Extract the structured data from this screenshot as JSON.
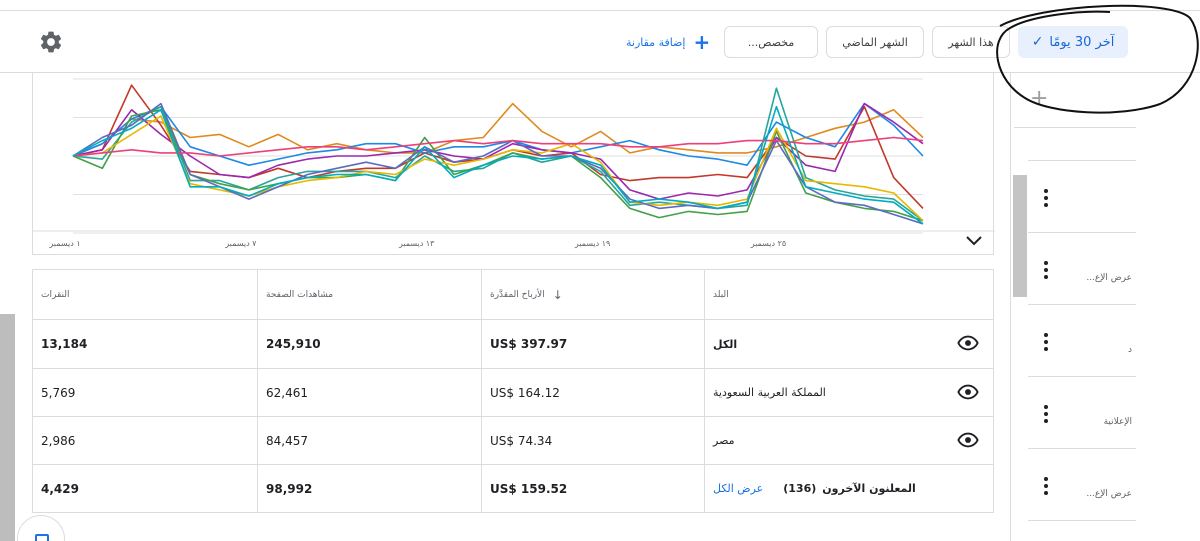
{
  "toolbar": {
    "add_compare": "إضافة مقارنة",
    "custom": "مخصص...",
    "last_month": "الشهر الماضي",
    "this_month": "هذا الشهر",
    "last_30_days": "آخر 30 يومًا",
    "icons": {
      "settings": "gear-icon",
      "add": "plus-icon",
      "check": "check-icon"
    }
  },
  "chart": {
    "x_ticks": [
      "١ ديسمبر",
      "٧ ديسمبر",
      "١٣ ديسمبر",
      "١٩ ديسمبر",
      "٢٥ ديسمبر"
    ]
  },
  "chart_data": {
    "type": "line",
    "x_ticks": [
      "١ ديسمبر",
      "٧ ديسمبر",
      "١٣ ديسمبر",
      "١٩ ديسمبر",
      "٢٥ ديسمبر"
    ],
    "x_count": 30,
    "ylim": [
      0,
      100
    ],
    "grid": true,
    "legend": "none",
    "series": [
      {
        "color": "#e08a1e",
        "values": [
          50,
          58,
          74,
          72,
          62,
          64,
          56,
          64,
          54,
          58,
          54,
          52,
          52,
          60,
          62,
          84,
          66,
          56,
          66,
          52,
          56,
          54,
          52,
          52,
          56,
          62,
          68,
          72,
          80,
          62
        ]
      },
      {
        "color": "#c0392b",
        "values": [
          50,
          54,
          96,
          70,
          40,
          38,
          36,
          42,
          36,
          40,
          42,
          42,
          52,
          46,
          48,
          54,
          50,
          52,
          38,
          34,
          36,
          36,
          38,
          36,
          62,
          50,
          48,
          82,
          36,
          16
        ]
      },
      {
        "color": "#1e88e5",
        "values": [
          50,
          58,
          74,
          82,
          56,
          50,
          44,
          48,
          52,
          54,
          58,
          58,
          52,
          56,
          56,
          60,
          54,
          52,
          56,
          60,
          54,
          50,
          48,
          44,
          72,
          62,
          56,
          84,
          70,
          50
        ]
      },
      {
        "color": "#9c27b0",
        "values": [
          50,
          54,
          80,
          64,
          50,
          38,
          36,
          44,
          48,
          50,
          50,
          52,
          54,
          50,
          48,
          58,
          54,
          52,
          48,
          28,
          22,
          26,
          24,
          28,
          62,
          44,
          40,
          84,
          72,
          58
        ]
      },
      {
        "color": "#26a69a",
        "values": [
          50,
          48,
          72,
          82,
          34,
          34,
          28,
          36,
          40,
          40,
          40,
          36,
          50,
          40,
          42,
          52,
          46,
          50,
          40,
          18,
          20,
          18,
          16,
          18,
          94,
          36,
          28,
          24,
          22,
          8
        ]
      },
      {
        "color": "#43a047",
        "values": [
          50,
          42,
          76,
          80,
          38,
          32,
          28,
          32,
          36,
          36,
          38,
          34,
          62,
          38,
          44,
          52,
          48,
          50,
          36,
          16,
          10,
          14,
          12,
          14,
          66,
          26,
          20,
          16,
          14,
          8
        ]
      },
      {
        "color": "#e6b800",
        "values": [
          50,
          52,
          64,
          76,
          32,
          28,
          24,
          30,
          34,
          36,
          40,
          38,
          48,
          44,
          48,
          54,
          52,
          58,
          46,
          20,
          18,
          20,
          18,
          22,
          68,
          34,
          32,
          30,
          26,
          8
        ]
      },
      {
        "color": "#5c6bc0",
        "values": [
          50,
          62,
          70,
          84,
          38,
          30,
          22,
          30,
          38,
          42,
          46,
          42,
          56,
          46,
          50,
          60,
          50,
          50,
          42,
          22,
          16,
          18,
          16,
          20,
          60,
          30,
          20,
          18,
          12,
          6
        ]
      },
      {
        "color": "#ec407a",
        "values": [
          50,
          52,
          54,
          52,
          52,
          50,
          52,
          54,
          56,
          56,
          54,
          56,
          58,
          60,
          58,
          60,
          58,
          58,
          58,
          56,
          56,
          58,
          58,
          60,
          60,
          58,
          58,
          60,
          62,
          60
        ]
      },
      {
        "color": "#00acc1",
        "values": [
          50,
          60,
          68,
          80,
          30,
          30,
          24,
          32,
          36,
          38,
          38,
          34,
          56,
          36,
          44,
          50,
          48,
          50,
          44,
          20,
          22,
          20,
          16,
          20,
          82,
          30,
          26,
          22,
          20,
          6
        ]
      }
    ]
  },
  "table": {
    "headers": {
      "clicks": "النقرات",
      "pageviews": "مشاهدات الصفحة",
      "earnings": "الأرباح المقدَّرة",
      "country": "البلد"
    },
    "rows": [
      {
        "clicks": "13,184",
        "pageviews": "245,910",
        "earnings": "US$ 397.97",
        "country": "الكل",
        "bold": true
      },
      {
        "clicks": "5,769",
        "pageviews": "62,461",
        "earnings": "US$ 164.12",
        "country": "المملكة العربية السعودية",
        "bold": false
      },
      {
        "clicks": "2,986",
        "pageviews": "84,457",
        "earnings": "US$ 74.34",
        "country": "مصر",
        "bold": false
      }
    ],
    "others": {
      "clicks": "4,429",
      "pageviews": "98,992",
      "earnings": "US$ 159.52",
      "label": "المعلنون الآخرون",
      "count": "(136)",
      "view_all": "عرض الكل"
    }
  },
  "side_panel": {
    "labels": [
      "عرض الإع...",
      "د",
      "الإعلانية",
      "عرض الإع..."
    ]
  }
}
